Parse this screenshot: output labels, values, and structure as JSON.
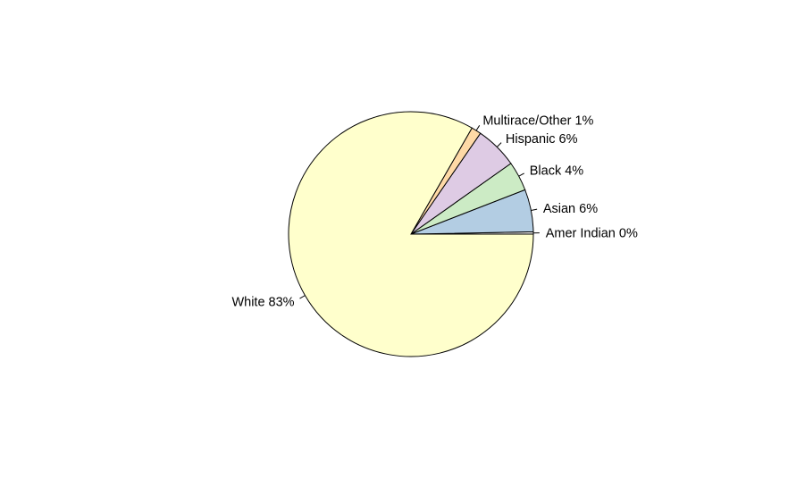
{
  "chart_data": {
    "type": "pie",
    "title": "",
    "start_angle_deg": 0,
    "direction": "counterclockwise",
    "slices": [
      {
        "name": "Amer Indian",
        "value": 0.3,
        "label": "Amer Indian 0%",
        "color": "#e6e6e6"
      },
      {
        "name": "Asian",
        "value": 5.6,
        "label": "Asian 6%",
        "color": "#b3cde3"
      },
      {
        "name": "Black",
        "value": 3.9,
        "label": "Black 4%",
        "color": "#ccebc5"
      },
      {
        "name": "Hispanic",
        "value": 5.6,
        "label": "Hispanic 6%",
        "color": "#decbe4"
      },
      {
        "name": "Multirace/Other",
        "value": 1.3,
        "label": "Multirace/Other 1%",
        "color": "#fed9a6"
      },
      {
        "name": "White",
        "value": 83.3,
        "label": "White 83%",
        "color": "#ffffcc"
      }
    ]
  }
}
